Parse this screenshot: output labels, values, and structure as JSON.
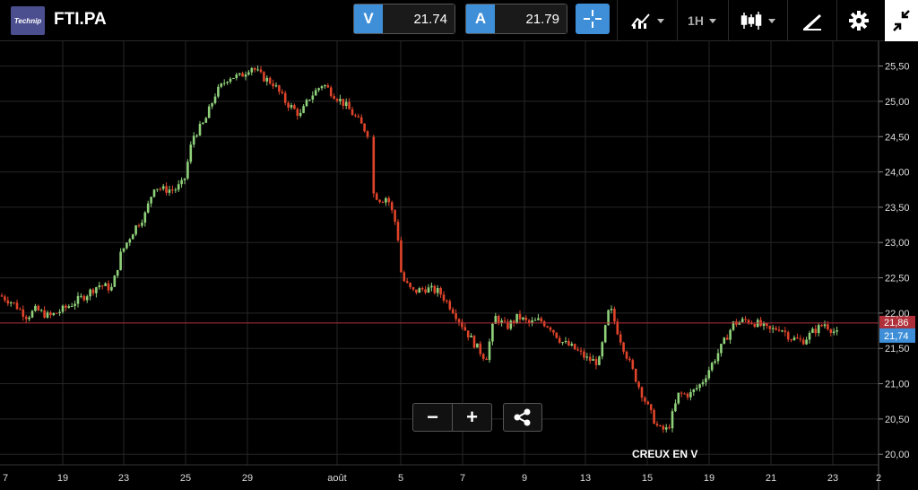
{
  "header": {
    "logo_text": "Technip",
    "symbol": "FTI.PA",
    "sell": {
      "label": "V",
      "price": "21.74",
      "color": "#3e8fd8"
    },
    "buy": {
      "label": "A",
      "price": "21.79",
      "color": "#3e8fd8"
    },
    "timeframe": "1H",
    "icons": [
      "crosshair-icon",
      "indicators-icon",
      "candlestick-icon",
      "drawing-icon",
      "gear-icon",
      "collapse-icon"
    ]
  },
  "chart_data": {
    "type": "candlestick",
    "ylim": [
      19.85,
      25.8
    ],
    "y_ticks": [
      "25,50",
      "25,00",
      "24,50",
      "24,00",
      "23,50",
      "23,00",
      "22,50",
      "22,00",
      "21,50",
      "21,00",
      "20,50",
      "20,00"
    ],
    "y_tick_values": [
      25.5,
      25.0,
      24.5,
      24.0,
      23.5,
      23.0,
      22.5,
      22.0,
      21.5,
      21.0,
      20.5,
      20.0
    ],
    "x_ticks": [
      "7",
      "19",
      "23",
      "25",
      "29",
      "août",
      "5",
      "7",
      "9",
      "13",
      "15",
      "19",
      "21",
      "23",
      "2"
    ],
    "current_price_line": 21.86,
    "current_price_label": "21,86",
    "bid_label": "21,74",
    "up_color": "#8fd17a",
    "down_color": "#e0442a",
    "price_line_color": "#b0303a",
    "bid_color": "#3e8fd8",
    "path": [
      [
        0,
        22.25
      ],
      [
        14,
        22.15
      ],
      [
        30,
        21.95
      ],
      [
        40,
        22.05
      ],
      [
        55,
        21.95
      ],
      [
        70,
        22.05
      ],
      [
        95,
        22.25
      ],
      [
        110,
        22.4
      ],
      [
        125,
        22.35
      ],
      [
        135,
        22.85
      ],
      [
        150,
        23.2
      ],
      [
        162,
        23.4
      ],
      [
        172,
        23.8
      ],
      [
        182,
        23.75
      ],
      [
        195,
        23.75
      ],
      [
        205,
        23.85
      ],
      [
        215,
        24.5
      ],
      [
        228,
        24.7
      ],
      [
        240,
        25.1
      ],
      [
        255,
        25.35
      ],
      [
        268,
        25.35
      ],
      [
        280,
        25.5
      ],
      [
        292,
        25.35
      ],
      [
        305,
        25.25
      ],
      [
        318,
        25.0
      ],
      [
        335,
        24.8
      ],
      [
        345,
        25.05
      ],
      [
        360,
        25.25
      ],
      [
        372,
        25.1
      ],
      [
        385,
        24.95
      ],
      [
        398,
        24.75
      ],
      [
        410,
        24.55
      ],
      [
        416,
        23.7
      ],
      [
        425,
        23.6
      ],
      [
        432,
        23.65
      ],
      [
        443,
        23.2
      ],
      [
        448,
        22.5
      ],
      [
        460,
        22.3
      ],
      [
        475,
        22.35
      ],
      [
        490,
        22.3
      ],
      [
        505,
        22.05
      ],
      [
        517,
        21.8
      ],
      [
        530,
        21.55
      ],
      [
        542,
        21.35
      ],
      [
        552,
        21.95
      ],
      [
        565,
        21.8
      ],
      [
        578,
        21.95
      ],
      [
        590,
        21.85
      ],
      [
        602,
        21.9
      ],
      [
        614,
        21.8
      ],
      [
        626,
        21.6
      ],
      [
        640,
        21.5
      ],
      [
        655,
        21.35
      ],
      [
        668,
        21.3
      ],
      [
        680,
        22.1
      ],
      [
        690,
        21.7
      ],
      [
        702,
        21.3
      ],
      [
        713,
        20.95
      ],
      [
        725,
        20.6
      ],
      [
        735,
        20.35
      ],
      [
        745,
        20.35
      ],
      [
        757,
        20.85
      ],
      [
        770,
        20.85
      ],
      [
        782,
        21.0
      ],
      [
        795,
        21.3
      ],
      [
        806,
        21.55
      ],
      [
        818,
        21.85
      ],
      [
        832,
        21.9
      ],
      [
        845,
        21.85
      ],
      [
        858,
        21.75
      ],
      [
        870,
        21.8
      ],
      [
        882,
        21.65
      ],
      [
        895,
        21.6
      ],
      [
        908,
        21.75
      ],
      [
        920,
        21.85
      ],
      [
        934,
        21.7
      ]
    ]
  },
  "controls": {
    "zoom_out": "−",
    "zoom_in": "+"
  },
  "annotation": {
    "pattern": "CREUX EN V"
  }
}
